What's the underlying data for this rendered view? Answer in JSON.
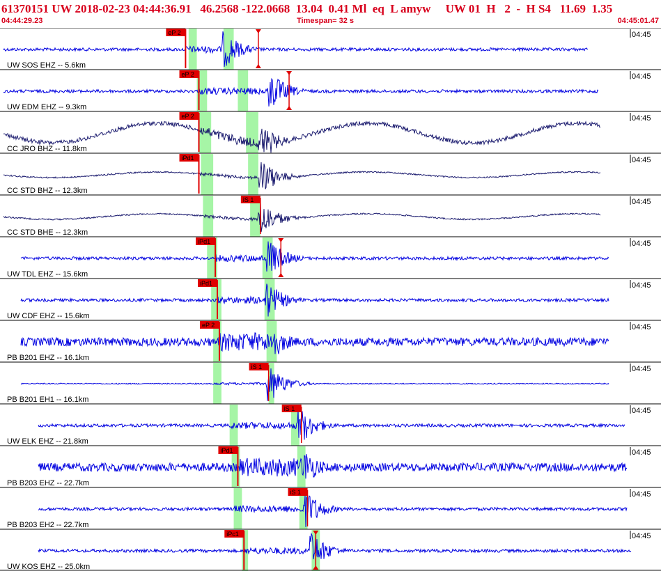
{
  "header": {
    "event_line": "61370151 UW 2018-02-23 04:44:36.91   46.2568 -122.0668  13.04  0.41 Ml  eq  L amyw     UW 01  H   2  -  H S4   11.69  1.35",
    "start_time": "04:44:29.23",
    "timespan": "Timespan=  32 s",
    "end_time": "04:45:01.47"
  },
  "colors": {
    "header_text": "#d8001c",
    "trace_blue": "#0000e0",
    "trace_dark": "#1a1a6e",
    "pick_red": "#e00000",
    "window_green": "#a6f5a6"
  },
  "time_axis": {
    "start_s": 0,
    "end_s": 32.24
  },
  "traces": [
    {
      "label": "UW SOS EHZ -- 5.6km",
      "time_label": "04:45",
      "color": "blue",
      "style": "burst",
      "p_pick": {
        "label": "eP 2",
        "t": 9.05
      },
      "s_pick": {
        "label": "",
        "t": 12.6
      },
      "p_window": [
        9.2,
        9.6
      ],
      "s_window": [
        10.9,
        11.4
      ],
      "burst_t": 11.0,
      "end_t": 28.7
    },
    {
      "label": "UW EDM EHZ -- 9.3km",
      "time_label": "04:45",
      "color": "blue",
      "style": "burst",
      "p_pick": {
        "label": "eP 2",
        "t": 9.7
      },
      "s_pick": {
        "label": "",
        "t": 14.1
      },
      "p_window": [
        9.6,
        10.1
      ],
      "s_window": [
        11.6,
        12.1
      ],
      "burst_t": 13.3,
      "end_t": 29.2
    },
    {
      "label": "CC JRO BHZ -- 11.8km",
      "time_label": "04:45",
      "color": "dark",
      "style": "swell",
      "p_pick": {
        "label": "eP 2",
        "t": 9.7
      },
      "s_pick": null,
      "p_window": [
        9.7,
        10.3
      ],
      "s_window": [
        12.0,
        12.6
      ],
      "burst_t": 12.8,
      "end_t": 29.3
    },
    {
      "label": "CC STD BHZ -- 12.3km",
      "time_label": "04:45",
      "color": "dark",
      "style": "swell",
      "p_pick": {
        "label": "iPd1",
        "t": 9.7
      },
      "s_pick": null,
      "p_window": [
        9.8,
        10.4
      ],
      "s_window": [
        12.1,
        12.6
      ],
      "burst_t": 12.8,
      "end_t": 29.3
    },
    {
      "label": "CC STD BHE -- 12.3km",
      "time_label": "04:45",
      "color": "dark",
      "style": "swell",
      "p_pick": null,
      "s_pick": {
        "label": "iS 1",
        "t": 12.7
      },
      "p_window": [
        9.9,
        10.4
      ],
      "s_window": [
        12.2,
        12.7
      ],
      "burst_t": 12.8,
      "end_t": 29.3
    },
    {
      "label": "UW TDL EHZ -- 15.6km",
      "time_label": "04:45",
      "color": "blue",
      "style": "burst",
      "p_pick": {
        "label": "iPd1",
        "t": 10.5
      },
      "s_pick": {
        "label": "",
        "t": 13.7
      },
      "p_window": [
        10.1,
        10.6
      ],
      "s_window": [
        12.8,
        13.3
      ],
      "burst_t": 13.2,
      "end_t": 29.7
    },
    {
      "label": "UW CDF EHZ -- 15.6km",
      "time_label": "04:45",
      "color": "blue",
      "style": "burst",
      "p_pick": {
        "label": "iPd1",
        "t": 10.6
      },
      "s_pick": null,
      "p_window": [
        10.3,
        10.8
      ],
      "s_window": [
        12.9,
        13.4
      ],
      "burst_t": 13.1,
      "end_t": 29.7
    },
    {
      "label": "PB B201 EHZ -- 16.1km",
      "time_label": "04:45",
      "color": "blue",
      "style": "noisy",
      "p_pick": {
        "label": "eP 2",
        "t": 10.7
      },
      "s_pick": null,
      "p_window": [
        10.4,
        10.8
      ],
      "s_window": [
        13.0,
        13.5
      ],
      "burst_t": 13.3,
      "end_t": 29.7
    },
    {
      "label": "PB B201 EH1 -- 16.1km",
      "time_label": "04:45",
      "color": "blue",
      "style": "quiet",
      "p_pick": null,
      "s_pick": {
        "label": "iS 1",
        "t": 13.1
      },
      "p_window": [
        10.4,
        10.8
      ],
      "s_window": [
        13.1,
        13.3
      ],
      "burst_t": 13.2,
      "end_t": 29.7
    },
    {
      "label": "UW ELK EHZ -- 21.8km",
      "time_label": "04:45",
      "color": "blue",
      "style": "burst",
      "p_pick": null,
      "s_pick": {
        "label": "iS 1",
        "t": 14.7
      },
      "p_window": [
        11.2,
        11.6
      ],
      "s_window": [
        14.2,
        14.6
      ],
      "burst_t": 14.7,
      "end_t": 30.5
    },
    {
      "label": "PB B203 EHZ -- 22.7km",
      "time_label": "04:45",
      "color": "blue",
      "style": "noisy",
      "p_pick": {
        "label": "iPd1",
        "t": 11.6
      },
      "s_pick": null,
      "p_window": [
        11.3,
        11.7
      ],
      "s_window": [
        14.5,
        14.9
      ],
      "burst_t": 14.9,
      "end_t": 30.6
    },
    {
      "label": "PB B203 EH2 -- 22.7km",
      "time_label": "04:45",
      "color": "blue",
      "style": "burst",
      "p_pick": null,
      "s_pick": {
        "label": "iS 1",
        "t": 15.0
      },
      "p_window": [
        11.4,
        11.8
      ],
      "s_window": [
        14.6,
        15.0
      ],
      "burst_t": 15.0,
      "end_t": 30.6
    },
    {
      "label": "UW KOS EHZ -- 25.0km",
      "time_label": "04:45",
      "color": "blue",
      "style": "burst",
      "p_pick": {
        "label": "iPc1",
        "t": 11.9
      },
      "s_pick": {
        "label": "",
        "t": 15.4
      },
      "p_window": [
        11.8,
        12.1
      ],
      "s_window": [
        15.2,
        15.6
      ],
      "burst_t": 15.3,
      "end_t": 30.8
    }
  ]
}
